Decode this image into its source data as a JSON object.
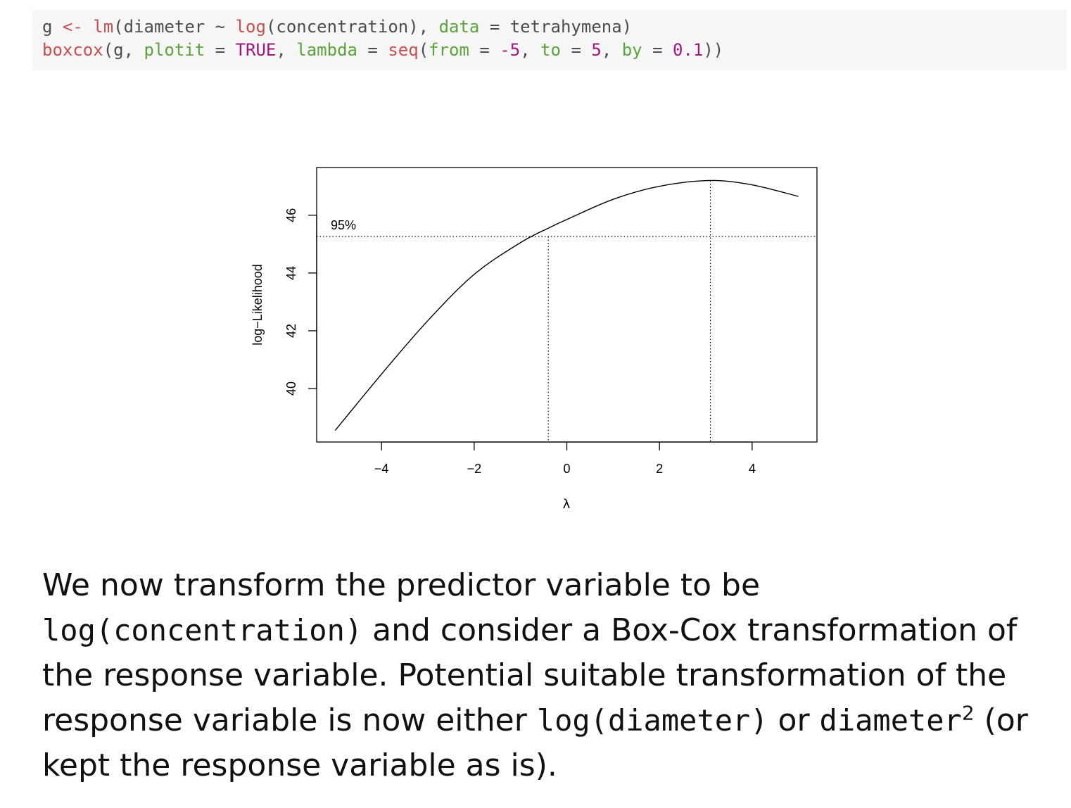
{
  "code": {
    "line1": [
      {
        "t": "g ",
        "c": "id"
      },
      {
        "t": "<-",
        "c": "fn"
      },
      {
        "t": " ",
        "c": "id"
      },
      {
        "t": "lm",
        "c": "fn"
      },
      {
        "t": "(diameter ",
        "c": "id"
      },
      {
        "t": "~",
        "c": "op"
      },
      {
        "t": " ",
        "c": "id"
      },
      {
        "t": "log",
        "c": "fn"
      },
      {
        "t": "(concentration), ",
        "c": "id"
      },
      {
        "t": "data",
        "c": "arg"
      },
      {
        "t": " = tetrahymena)",
        "c": "id"
      }
    ],
    "line2": [
      {
        "t": "boxcox",
        "c": "fn"
      },
      {
        "t": "(g, ",
        "c": "id"
      },
      {
        "t": "plotit",
        "c": "arg"
      },
      {
        "t": " = ",
        "c": "id"
      },
      {
        "t": "TRUE",
        "c": "kw"
      },
      {
        "t": ", ",
        "c": "id"
      },
      {
        "t": "lambda",
        "c": "arg"
      },
      {
        "t": " = ",
        "c": "id"
      },
      {
        "t": "seq",
        "c": "fn"
      },
      {
        "t": "(",
        "c": "id"
      },
      {
        "t": "from",
        "c": "arg"
      },
      {
        "t": " = ",
        "c": "id"
      },
      {
        "t": "-5",
        "c": "num"
      },
      {
        "t": ", ",
        "c": "id"
      },
      {
        "t": "to",
        "c": "arg"
      },
      {
        "t": " = ",
        "c": "id"
      },
      {
        "t": "5",
        "c": "num"
      },
      {
        "t": ", ",
        "c": "id"
      },
      {
        "t": "by",
        "c": "arg"
      },
      {
        "t": " = ",
        "c": "id"
      },
      {
        "t": "0.1",
        "c": "num"
      },
      {
        "t": "))",
        "c": "id"
      }
    ]
  },
  "chart_data": {
    "type": "line",
    "title": "",
    "xlabel": "λ",
    "ylabel": "log−Likelihood",
    "xlim": [
      -5.4,
      5.4
    ],
    "ylim": [
      38.15,
      47.65
    ],
    "xticks": [
      -4,
      -2,
      0,
      2,
      4
    ],
    "xtick_labels": [
      "−4",
      "−2",
      "0",
      "2",
      "4"
    ],
    "yticks": [
      40,
      42,
      44,
      46
    ],
    "ytick_labels": [
      "40",
      "42",
      "44",
      "46"
    ],
    "grid": false,
    "series": [
      {
        "x": [
          -5,
          -4,
          -3,
          -2,
          -1,
          -0.4,
          0,
          1,
          2,
          3.1,
          4,
          5
        ],
        "y": [
          38.55,
          40.5,
          42.35,
          43.95,
          45.05,
          45.55,
          45.85,
          46.55,
          47.0,
          47.2,
          47.05,
          46.65
        ]
      }
    ],
    "ci_level_y": 45.26,
    "ci_label": "95%",
    "ci_lower_x": -0.4,
    "lambda_hat_x": 3.1
  },
  "text": {
    "p1": "We now transform the predictor variable to be",
    "p2_code": "log(concentration)",
    "p2_rest": " and consider a Box-Cox transformation of",
    "p3": "the response variable. Potential suitable transformation of the",
    "p4_a": "response variable is now either ",
    "p4_code1": "log(diameter)",
    "p4_b": " or ",
    "p4_code2": "diameter",
    "p4_sup": "2",
    "p4_c": " (or",
    "p5": "kept the response variable as is)."
  }
}
